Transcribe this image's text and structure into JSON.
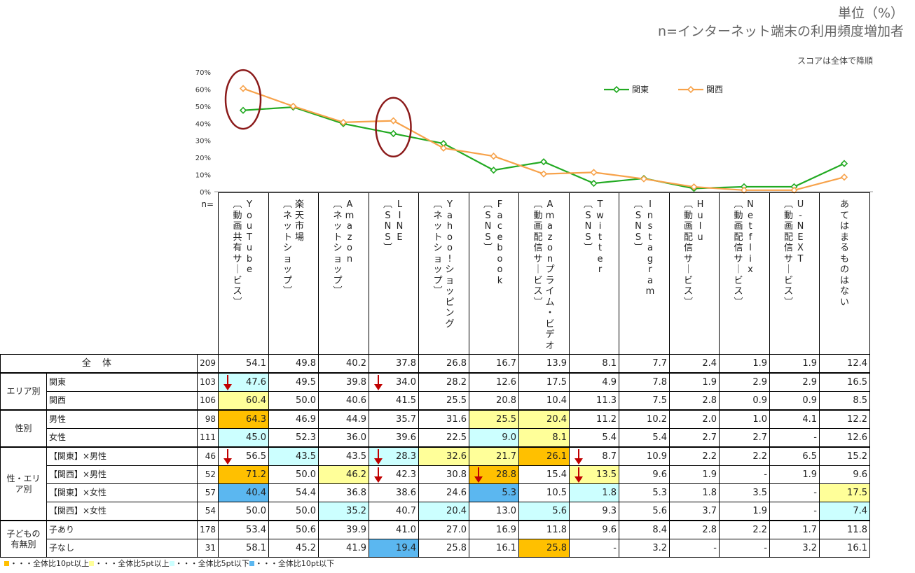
{
  "header": {
    "unit": "単位（%）",
    "base": "n=インターネット端末の利用頻度増加者",
    "sort_note": "スコアは全体で降順"
  },
  "n_label": "n=",
  "columns": [
    "YouTube【動画共有サービス】",
    "楽天市場【ネットショップ】",
    "Amazon【ネットショップ】",
    "LINE【SNS】",
    "Yahoo!ショッピング【ネットショップ】",
    "Facebook【SNS】",
    "Amazonプライム・ビデオ【動画配信サービス】",
    "Twitter【SNS】",
    "Instagram【SNS】",
    "Hulu【動画配信サービス】",
    "Netflix【動画配信サービス】",
    "U-NEXT【動画配信サービス】",
    "あてはまるものはない"
  ],
  "rows": [
    {
      "group": "全 体",
      "sub": "",
      "n": "209",
      "values": [
        "54.1",
        "49.8",
        "40.2",
        "37.8",
        "26.8",
        "16.7",
        "13.9",
        "8.1",
        "7.7",
        "2.4",
        "1.9",
        "1.9",
        "12.4"
      ],
      "colors": [
        "",
        "",
        "",
        "",
        "",
        "",
        "",
        "",
        "",
        "",
        "",
        "",
        ""
      ]
    },
    {
      "group": "エリア別",
      "sub": "関東",
      "n": "103",
      "values": [
        "47.6",
        "49.5",
        "39.8",
        "34.0",
        "28.2",
        "12.6",
        "17.5",
        "4.9",
        "7.8",
        "1.9",
        "2.9",
        "2.9",
        "16.5"
      ],
      "colors": [
        "c",
        "",
        "",
        "",
        "",
        "",
        "",
        "",
        "",
        "",
        "",
        "",
        ""
      ]
    },
    {
      "group": "",
      "sub": "関西",
      "n": "106",
      "values": [
        "60.4",
        "50.0",
        "40.6",
        "41.5",
        "25.5",
        "20.8",
        "10.4",
        "11.3",
        "7.5",
        "2.8",
        "0.9",
        "0.9",
        "8.5"
      ],
      "colors": [
        "y",
        "",
        "",
        "",
        "",
        "",
        "",
        "",
        "",
        "",
        "",
        "",
        ""
      ]
    },
    {
      "group": "性別",
      "sub": "男性",
      "n": "98",
      "values": [
        "64.3",
        "46.9",
        "44.9",
        "35.7",
        "31.6",
        "25.5",
        "20.4",
        "11.2",
        "10.2",
        "2.0",
        "1.0",
        "4.1",
        "12.2"
      ],
      "colors": [
        "o",
        "",
        "",
        "",
        "",
        "y",
        "y",
        "",
        "",
        "",
        "",
        "",
        ""
      ]
    },
    {
      "group": "",
      "sub": "女性",
      "n": "111",
      "values": [
        "45.0",
        "52.3",
        "36.0",
        "39.6",
        "22.5",
        "9.0",
        "8.1",
        "5.4",
        "5.4",
        "2.7",
        "2.7",
        "-",
        "12.6"
      ],
      "colors": [
        "c",
        "",
        "",
        "",
        "",
        "c",
        "y",
        "",
        "",
        "",
        "",
        "",
        ""
      ]
    },
    {
      "group": "性・エリア別",
      "sub": "【関東】×男性",
      "n": "46",
      "values": [
        "56.5",
        "43.5",
        "43.5",
        "28.3",
        "32.6",
        "21.7",
        "26.1",
        "8.7",
        "10.9",
        "2.2",
        "2.2",
        "6.5",
        "15.2"
      ],
      "colors": [
        "",
        "c",
        "",
        "c",
        "y",
        "y",
        "o",
        "",
        "",
        "",
        "",
        "",
        ""
      ]
    },
    {
      "group": "",
      "sub": "【関西】×男性",
      "n": "52",
      "values": [
        "71.2",
        "50.0",
        "46.2",
        "42.3",
        "30.8",
        "28.8",
        "15.4",
        "13.5",
        "9.6",
        "1.9",
        "-",
        "1.9",
        "9.6"
      ],
      "colors": [
        "o",
        "",
        "y",
        "",
        "",
        "o",
        "",
        "y",
        "",
        "",
        "",
        "",
        ""
      ]
    },
    {
      "group": "",
      "sub": "【関東】×女性",
      "n": "57",
      "values": [
        "40.4",
        "54.4",
        "36.8",
        "38.6",
        "24.6",
        "5.3",
        "10.5",
        "1.8",
        "5.3",
        "1.8",
        "3.5",
        "-",
        "17.5"
      ],
      "colors": [
        "b",
        "",
        "",
        "",
        "",
        "b",
        "",
        "c",
        "",
        "",
        "",
        "",
        "y"
      ]
    },
    {
      "group": "",
      "sub": "【関西】×女性",
      "n": "54",
      "values": [
        "50.0",
        "50.0",
        "35.2",
        "40.7",
        "20.4",
        "13.0",
        "5.6",
        "9.3",
        "5.6",
        "3.7",
        "1.9",
        "-",
        "7.4"
      ],
      "colors": [
        "",
        "",
        "c",
        "",
        "c",
        "",
        "c",
        "",
        "",
        "",
        "",
        "",
        "c"
      ]
    },
    {
      "group": "子どもの有無別",
      "sub": "子あり",
      "n": "178",
      "values": [
        "53.4",
        "50.6",
        "39.9",
        "41.0",
        "27.0",
        "16.9",
        "11.8",
        "9.6",
        "8.4",
        "2.8",
        "2.2",
        "1.7",
        "11.8"
      ],
      "colors": [
        "",
        "",
        "",
        "",
        "",
        "",
        "",
        "",
        "",
        "",
        "",
        "",
        ""
      ]
    },
    {
      "group": "",
      "sub": "子なし",
      "n": "31",
      "values": [
        "58.1",
        "45.2",
        "41.9",
        "19.4",
        "25.8",
        "16.1",
        "25.8",
        "-",
        "3.2",
        "-",
        "-",
        "3.2",
        "16.1"
      ],
      "colors": [
        "",
        "",
        "",
        "b",
        "",
        "",
        "o",
        "",
        "",
        "",
        "",
        "",
        ""
      ]
    }
  ],
  "legend": [
    "・・・全体比10pt以上",
    "・・・全体比5pt以上",
    "・・・全体比5pt以下",
    "・・・全体比10pt以下"
  ],
  "colors": {
    "orange": "#ffc000",
    "yellow": "#ffff99",
    "cyan": "#ccffff",
    "blue": "#5bb7f0",
    "kanto_line": "#22aa22",
    "kansai_line": "#f7a24a",
    "arrow": "#c00000",
    "circle": "#8b1a1a"
  },
  "chart_data": {
    "type": "line",
    "categories": [
      "YouTube【動画共有サービス】",
      "楽天市場【ネットショップ】",
      "Amazon【ネットショップ】",
      "LINE【SNS】",
      "Yahoo!ショッピング【ネットショップ】",
      "Facebook【SNS】",
      "Amazonプライム・ビデオ【動画配信サービス】",
      "Twitter【SNS】",
      "Instagram【SNS】",
      "Hulu【動画配信サービス】",
      "Netflix【動画配信サービス】",
      "U-NEXT【動画配信サービス】",
      "あてはまるものはない"
    ],
    "series": [
      {
        "name": "関東",
        "values": [
          47.6,
          49.5,
          39.8,
          34.0,
          28.2,
          12.6,
          17.5,
          4.9,
          7.8,
          1.9,
          2.9,
          2.9,
          16.5
        ]
      },
      {
        "name": "関西",
        "values": [
          60.4,
          50.0,
          40.6,
          41.5,
          25.5,
          20.8,
          10.4,
          11.3,
          7.5,
          2.8,
          0.9,
          0.9,
          8.5
        ]
      }
    ],
    "y_ticks": [
      "0%",
      "10%",
      "20%",
      "30%",
      "40%",
      "50%",
      "60%",
      "70%"
    ],
    "ylim": [
      0,
      70
    ],
    "legend_position": "top-right",
    "highlighted_categories": [
      "YouTube【動画共有サービス】",
      "LINE【SNS】"
    ],
    "arrows": [
      {
        "row": 1,
        "col": 0
      },
      {
        "row": 1,
        "col": 3
      },
      {
        "row": 5,
        "col": 0
      },
      {
        "row": 5,
        "col": 3
      },
      {
        "row": 5,
        "col": 7
      },
      {
        "row": 6,
        "col": 3
      },
      {
        "row": 6,
        "col": 5
      },
      {
        "row": 6,
        "col": 7
      }
    ]
  }
}
